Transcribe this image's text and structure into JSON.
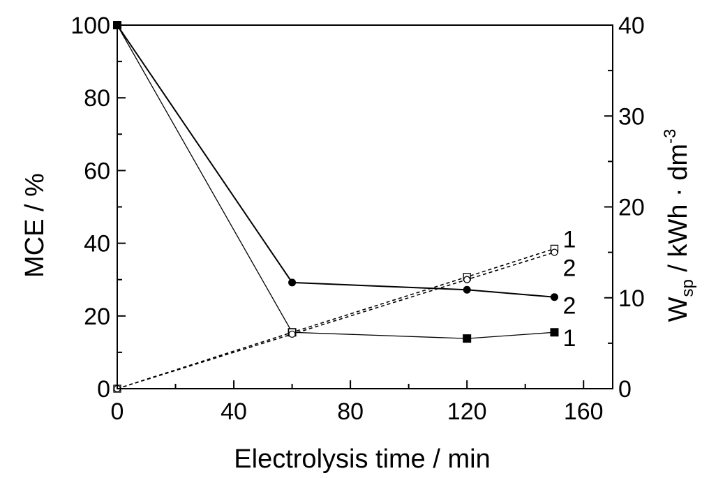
{
  "chart_data": {
    "type": "line",
    "xlabel": "Electrolysis time / min",
    "ylabel_left": "MCE / %",
    "ylabel_right": {
      "main": "W",
      "sub": "sp",
      "rest": " / kWh · dm",
      "sup": "-3"
    },
    "xlim": [
      0,
      170
    ],
    "ylim_left": [
      0,
      100
    ],
    "ylim_right": [
      0,
      40
    ],
    "x_ticks": [
      0,
      40,
      80,
      120,
      160
    ],
    "x_tick_labels": [
      "0",
      "40",
      "80",
      "120",
      "160"
    ],
    "y_left_ticks": [
      0,
      20,
      40,
      60,
      80,
      100
    ],
    "y_left_tick_labels": [
      "0",
      "20",
      "40",
      "60",
      "80",
      "100"
    ],
    "y_right_ticks": [
      0,
      10,
      20,
      30,
      40
    ],
    "y_right_tick_labels": [
      "0",
      "10",
      "20",
      "30",
      "40"
    ],
    "grid": false,
    "series": [
      {
        "name": "MCE 1",
        "axis": "left",
        "marker": "filled-square",
        "line": "solid-thin",
        "curve_label": "1",
        "x": [
          0,
          60,
          120,
          150
        ],
        "y": [
          100,
          15.5,
          13.8,
          15.5
        ]
      },
      {
        "name": "MCE 2",
        "axis": "left",
        "marker": "filled-circle",
        "line": "solid",
        "curve_label": "2",
        "x": [
          0,
          60,
          120,
          150
        ],
        "y": [
          100,
          29.2,
          27.2,
          25.2
        ]
      },
      {
        "name": "Wsp 1",
        "axis": "right",
        "marker": "open-square",
        "line": "dashed",
        "curve_label": "1",
        "x": [
          0,
          60,
          120,
          150
        ],
        "y": [
          0,
          6.2,
          12.3,
          15.4
        ]
      },
      {
        "name": "Wsp 2",
        "axis": "right",
        "marker": "open-circle",
        "line": "dashed",
        "curve_label": "2",
        "x": [
          0,
          60,
          120,
          150
        ],
        "y": [
          0,
          6.0,
          12.0,
          15.0
        ]
      }
    ]
  }
}
